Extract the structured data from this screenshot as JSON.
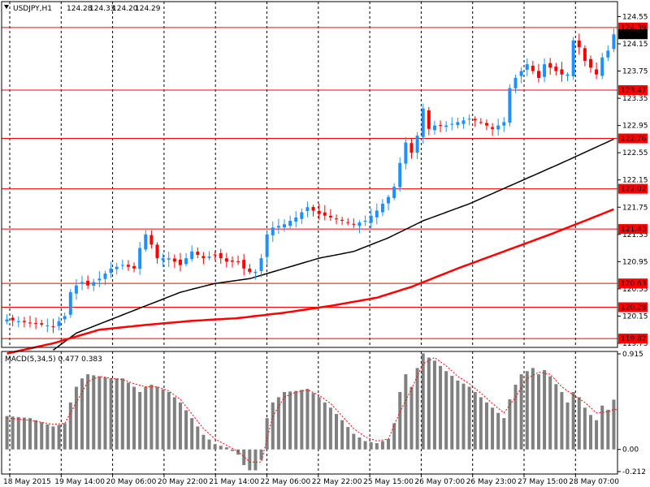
{
  "chart_data": {
    "type": "candlestick",
    "symbol_label": "USDJPY,H1",
    "ohlc_readout": [
      "124.28",
      "124.33",
      "124.20",
      "124.29"
    ],
    "price_axis": {
      "range": [
        119.69,
        124.77
      ],
      "ticks": [
        "124.55",
        "124.15",
        "123.75",
        "123.35",
        "122.95",
        "122.55",
        "122.15",
        "121.75",
        "121.35",
        "120.95",
        "120.55",
        "120.15",
        "119.75"
      ]
    },
    "horizontal_levels": [
      {
        "value": 124.39,
        "label": "124.39"
      },
      {
        "value": 123.47,
        "label": "123.47"
      },
      {
        "value": 122.76,
        "label": "122.76"
      },
      {
        "value": 122.02,
        "label": "122.02"
      },
      {
        "value": 121.43,
        "label": "121.43"
      },
      {
        "value": 120.63,
        "label": "120.63"
      },
      {
        "value": 120.28,
        "label": "120.28"
      },
      {
        "value": 119.82,
        "label": "119.82"
      }
    ],
    "current_price": {
      "value": 124.29,
      "label": "124.29"
    },
    "x_axis_labels": [
      "18 May 2015",
      "19 May 14:00",
      "20 May 06:00",
      "20 May 22:00",
      "21 May 14:00",
      "22 May 06:00",
      "22 May 22:00",
      "25 May 15:00",
      "26 May 07:00",
      "26 May 23:00",
      "27 May 15:00",
      "28 May 07:00"
    ],
    "price_path": [
      [
        0,
        120.1
      ],
      [
        4,
        120.05
      ],
      [
        8,
        120.0
      ],
      [
        10,
        120.15
      ],
      [
        11,
        120.5
      ],
      [
        12,
        120.6
      ],
      [
        13,
        120.65
      ],
      [
        14,
        120.6
      ],
      [
        16,
        120.7
      ],
      [
        18,
        120.85
      ],
      [
        20,
        120.9
      ],
      [
        22,
        120.85
      ],
      [
        23,
        121.15
      ],
      [
        24,
        121.35
      ],
      [
        25,
        121.2
      ],
      [
        26,
        121.0
      ],
      [
        28,
        121.0
      ],
      [
        30,
        120.9
      ],
      [
        32,
        121.1
      ],
      [
        34,
        121.0
      ],
      [
        36,
        121.05
      ],
      [
        38,
        120.95
      ],
      [
        40,
        120.95
      ],
      [
        41,
        120.85
      ],
      [
        42,
        120.8
      ],
      [
        43,
        120.8
      ],
      [
        44,
        121.0
      ],
      [
        45,
        121.35
      ],
      [
        46,
        121.45
      ],
      [
        48,
        121.5
      ],
      [
        50,
        121.6
      ],
      [
        52,
        121.75
      ],
      [
        54,
        121.65
      ],
      [
        56,
        121.6
      ],
      [
        58,
        121.55
      ],
      [
        60,
        121.5
      ],
      [
        62,
        121.55
      ],
      [
        64,
        121.7
      ],
      [
        66,
        121.9
      ],
      [
        67,
        122.05
      ],
      [
        68,
        122.4
      ],
      [
        69,
        122.7
      ],
      [
        70,
        122.55
      ],
      [
        71,
        122.8
      ],
      [
        72,
        123.2
      ],
      [
        73,
        122.9
      ],
      [
        74,
        122.95
      ],
      [
        76,
        122.95
      ],
      [
        78,
        123.0
      ],
      [
        80,
        123.05
      ],
      [
        82,
        123.0
      ],
      [
        84,
        122.9
      ],
      [
        86,
        123.0
      ],
      [
        87,
        123.5
      ],
      [
        88,
        123.65
      ],
      [
        89,
        123.75
      ],
      [
        90,
        123.85
      ],
      [
        91,
        123.75
      ],
      [
        92,
        123.65
      ],
      [
        93,
        123.85
      ],
      [
        94,
        123.8
      ],
      [
        96,
        123.7
      ],
      [
        97,
        123.7
      ],
      [
        98,
        124.2
      ],
      [
        99,
        124.1
      ],
      [
        100,
        123.9
      ],
      [
        101,
        123.8
      ],
      [
        102,
        123.7
      ],
      [
        103,
        123.95
      ],
      [
        104,
        124.05
      ],
      [
        105,
        124.29
      ]
    ],
    "moving_averages": [
      {
        "color": "#000000",
        "values": [
          [
            8,
            119.65
          ],
          [
            12,
            119.9
          ],
          [
            18,
            120.1
          ],
          [
            24,
            120.3
          ],
          [
            30,
            120.5
          ],
          [
            36,
            120.63
          ],
          [
            42,
            120.7
          ],
          [
            48,
            120.85
          ],
          [
            54,
            121.0
          ],
          [
            60,
            121.1
          ],
          [
            66,
            121.3
          ],
          [
            72,
            121.55
          ],
          [
            80,
            121.8
          ],
          [
            88,
            122.1
          ],
          [
            96,
            122.4
          ],
          [
            105,
            122.75
          ]
        ]
      },
      {
        "color": "#ff0000",
        "values": [
          [
            0,
            119.6
          ],
          [
            8,
            119.75
          ],
          [
            16,
            119.95
          ],
          [
            24,
            120.02
          ],
          [
            32,
            120.08
          ],
          [
            40,
            120.12
          ],
          [
            48,
            120.2
          ],
          [
            56,
            120.3
          ],
          [
            64,
            120.42
          ],
          [
            70,
            120.58
          ],
          [
            78,
            120.85
          ],
          [
            86,
            121.1
          ],
          [
            94,
            121.35
          ],
          [
            100,
            121.55
          ],
          [
            105,
            121.72
          ]
        ]
      }
    ],
    "macd": {
      "label": "MACD(5,34,5) 0.477 0.383",
      "axis_labels": [
        "0.915",
        "0.00",
        "-0.212"
      ],
      "range": [
        -0.212,
        0.915
      ],
      "histogram": [
        [
          0,
          0.32
        ],
        [
          4,
          0.3
        ],
        [
          8,
          0.22
        ],
        [
          10,
          0.25
        ],
        [
          11,
          0.45
        ],
        [
          12,
          0.6
        ],
        [
          13,
          0.68
        ],
        [
          14,
          0.72
        ],
        [
          16,
          0.7
        ],
        [
          18,
          0.68
        ],
        [
          20,
          0.68
        ],
        [
          22,
          0.6
        ],
        [
          23,
          0.55
        ],
        [
          24,
          0.6
        ],
        [
          25,
          0.62
        ],
        [
          26,
          0.6
        ],
        [
          28,
          0.55
        ],
        [
          30,
          0.45
        ],
        [
          32,
          0.3
        ],
        [
          34,
          0.14
        ],
        [
          36,
          0.05
        ],
        [
          38,
          0.02
        ],
        [
          40,
          -0.05
        ],
        [
          41,
          -0.15
        ],
        [
          42,
          -0.2
        ],
        [
          43,
          -0.2
        ],
        [
          44,
          -0.1
        ],
        [
          45,
          0.3
        ],
        [
          46,
          0.45
        ],
        [
          48,
          0.55
        ],
        [
          50,
          0.56
        ],
        [
          52,
          0.58
        ],
        [
          54,
          0.5
        ],
        [
          56,
          0.4
        ],
        [
          58,
          0.28
        ],
        [
          60,
          0.15
        ],
        [
          62,
          0.08
        ],
        [
          64,
          0.06
        ],
        [
          66,
          0.1
        ],
        [
          67,
          0.25
        ],
        [
          68,
          0.55
        ],
        [
          69,
          0.72
        ],
        [
          70,
          0.6
        ],
        [
          71,
          0.78
        ],
        [
          72,
          0.92
        ],
        [
          73,
          0.88
        ],
        [
          74,
          0.85
        ],
        [
          76,
          0.75
        ],
        [
          78,
          0.66
        ],
        [
          80,
          0.6
        ],
        [
          82,
          0.5
        ],
        [
          84,
          0.4
        ],
        [
          86,
          0.3
        ],
        [
          87,
          0.48
        ],
        [
          88,
          0.62
        ],
        [
          89,
          0.72
        ],
        [
          90,
          0.75
        ],
        [
          91,
          0.78
        ],
        [
          92,
          0.72
        ],
        [
          93,
          0.76
        ],
        [
          94,
          0.7
        ],
        [
          96,
          0.55
        ],
        [
          97,
          0.45
        ],
        [
          98,
          0.55
        ],
        [
          99,
          0.5
        ],
        [
          100,
          0.4
        ],
        [
          101,
          0.33
        ],
        [
          102,
          0.28
        ],
        [
          103,
          0.42
        ],
        [
          104,
          0.38
        ],
        [
          105,
          0.477
        ]
      ],
      "signal": [
        [
          0,
          0.3
        ],
        [
          4,
          0.28
        ],
        [
          8,
          0.24
        ],
        [
          10,
          0.25
        ],
        [
          12,
          0.45
        ],
        [
          14,
          0.65
        ],
        [
          16,
          0.7
        ],
        [
          18,
          0.68
        ],
        [
          20,
          0.67
        ],
        [
          22,
          0.63
        ],
        [
          24,
          0.6
        ],
        [
          26,
          0.6
        ],
        [
          28,
          0.56
        ],
        [
          30,
          0.48
        ],
        [
          32,
          0.34
        ],
        [
          34,
          0.2
        ],
        [
          36,
          0.1
        ],
        [
          38,
          0.04
        ],
        [
          40,
          -0.02
        ],
        [
          42,
          -0.12
        ],
        [
          44,
          -0.12
        ],
        [
          45,
          0.1
        ],
        [
          46,
          0.32
        ],
        [
          48,
          0.5
        ],
        [
          50,
          0.55
        ],
        [
          52,
          0.57
        ],
        [
          54,
          0.52
        ],
        [
          56,
          0.44
        ],
        [
          58,
          0.32
        ],
        [
          60,
          0.2
        ],
        [
          62,
          0.12
        ],
        [
          64,
          0.08
        ],
        [
          66,
          0.1
        ],
        [
          68,
          0.36
        ],
        [
          70,
          0.58
        ],
        [
          72,
          0.82
        ],
        [
          74,
          0.88
        ],
        [
          76,
          0.8
        ],
        [
          78,
          0.7
        ],
        [
          80,
          0.63
        ],
        [
          82,
          0.54
        ],
        [
          84,
          0.44
        ],
        [
          86,
          0.35
        ],
        [
          88,
          0.5
        ],
        [
          90,
          0.68
        ],
        [
          92,
          0.74
        ],
        [
          94,
          0.72
        ],
        [
          96,
          0.6
        ],
        [
          98,
          0.52
        ],
        [
          100,
          0.45
        ],
        [
          102,
          0.35
        ],
        [
          104,
          0.36
        ],
        [
          105,
          0.383
        ]
      ]
    },
    "colors": {
      "bull_candle": "#1e90ff",
      "bear_candle": "#ff0000",
      "level_line": "#ff0000",
      "level_label_bg": "#ff0000",
      "current_label_bg": "#000000",
      "histogram": "#808080",
      "signal": "#ff0000",
      "grid": "#000000"
    }
  }
}
